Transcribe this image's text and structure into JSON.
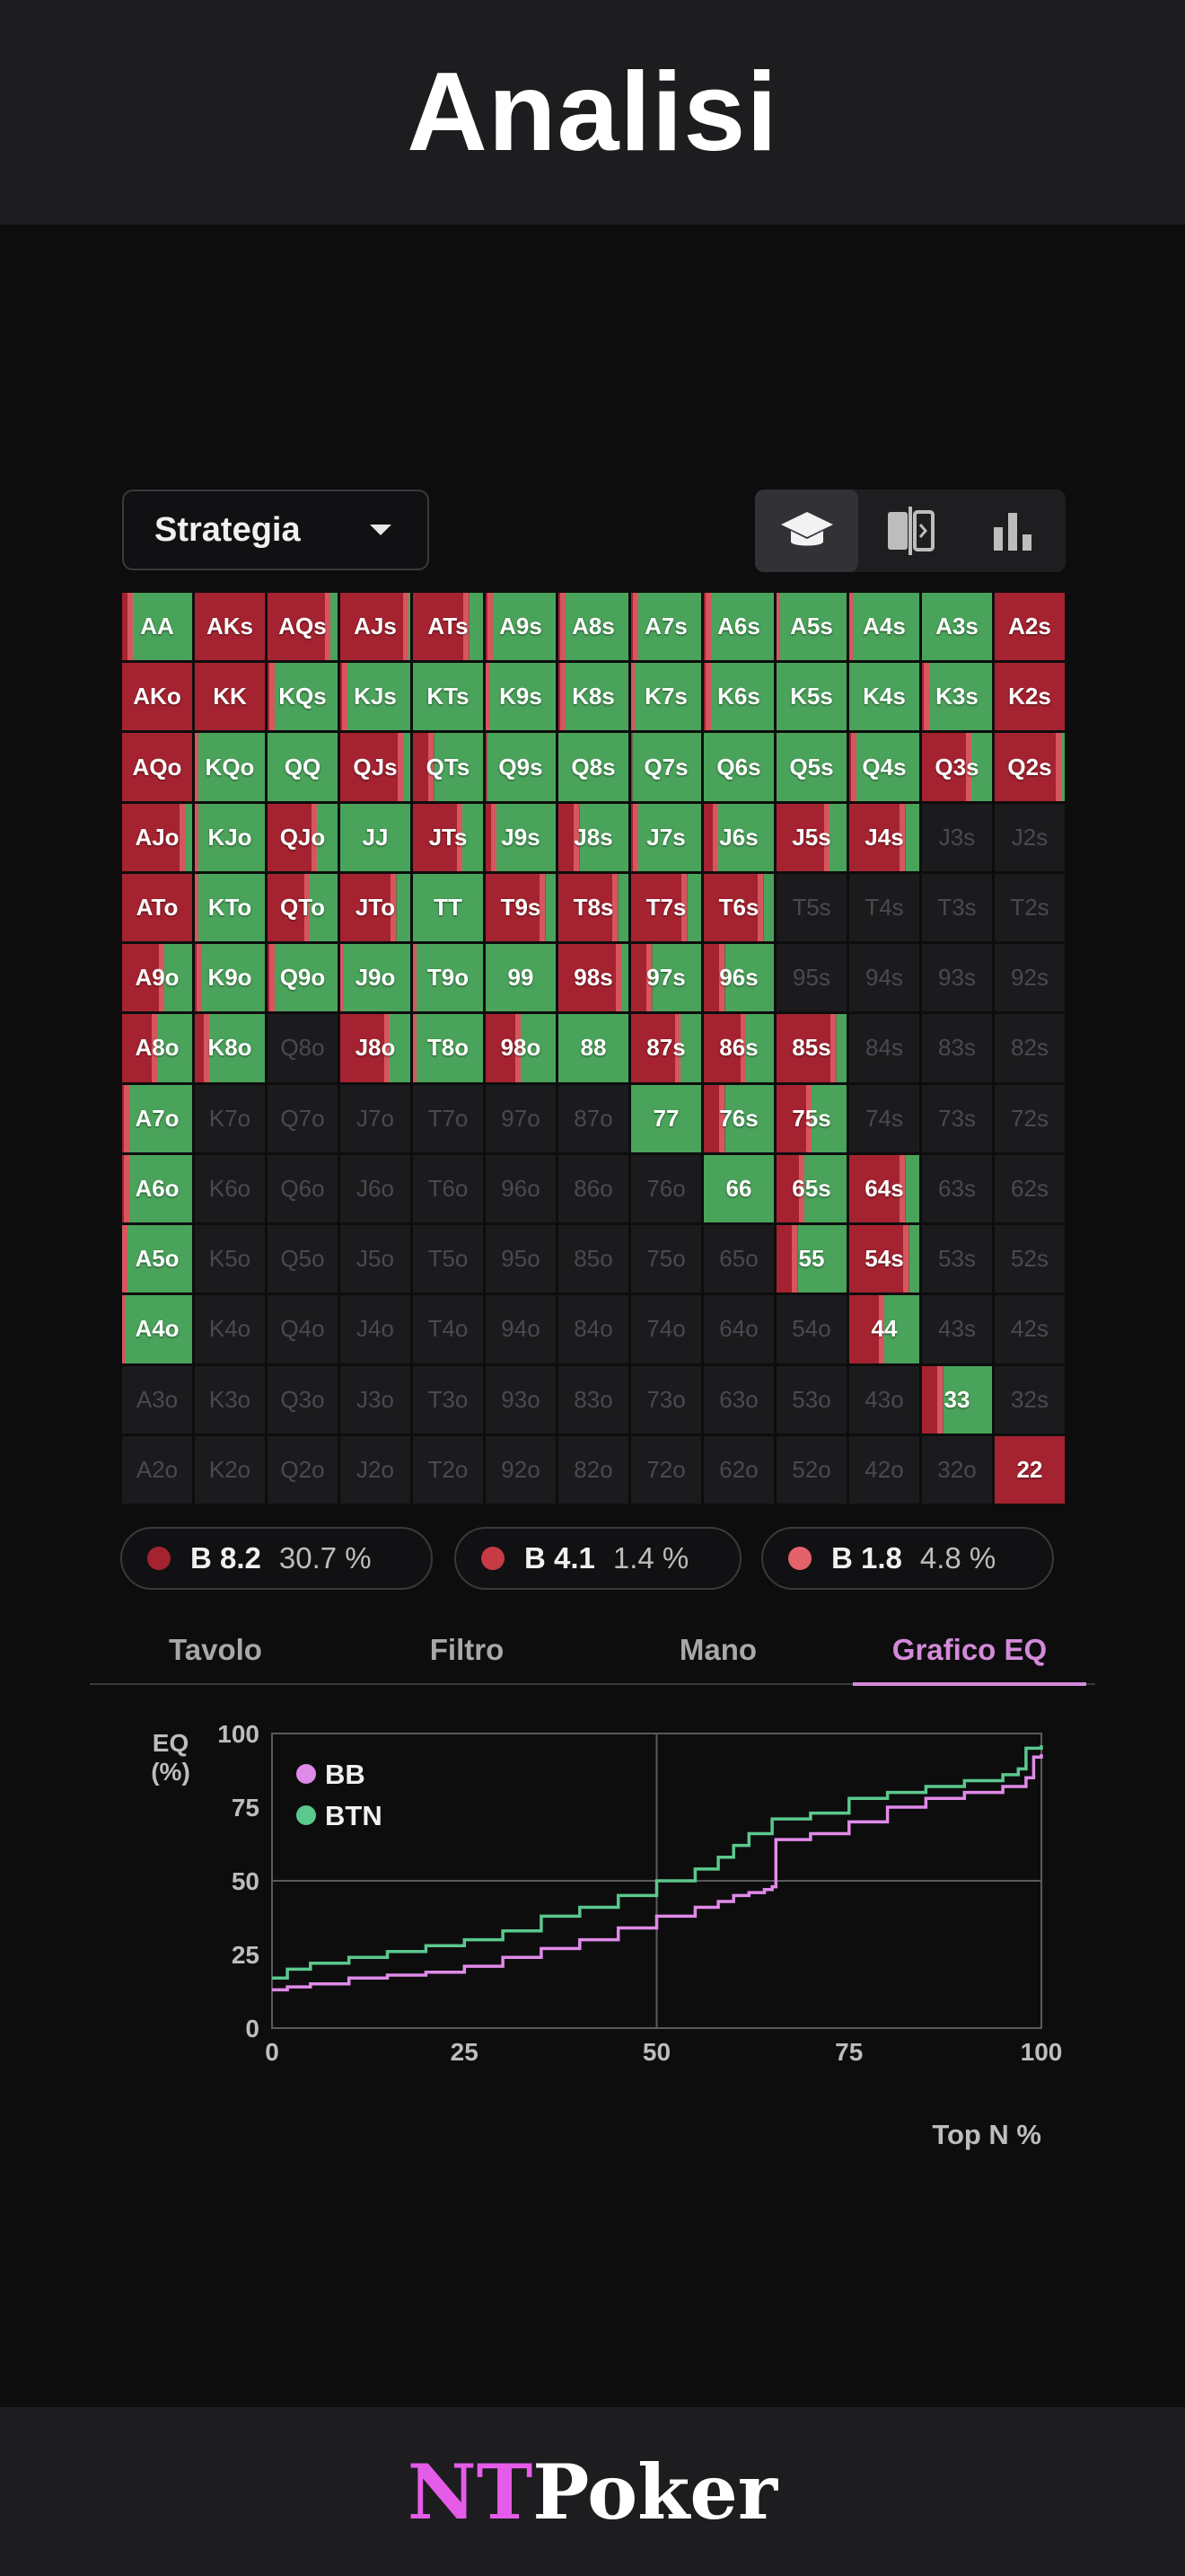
{
  "header": {
    "title": "Analisi"
  },
  "toolbar": {
    "strategy_select": "Strategia",
    "modes": [
      {
        "icon": "graduation-cap-icon",
        "active": true
      },
      {
        "icon": "compare-split-icon",
        "active": false
      },
      {
        "icon": "bar-chart-icon",
        "active": false
      }
    ]
  },
  "colors": {
    "red": "#a52330",
    "green": "#4aa35a",
    "light_red": "#e4626a",
    "empty": "#1b1b1d"
  },
  "hand_grid": {
    "rows": [
      [
        "AA",
        "AKs",
        "AQs",
        "AJs",
        "ATs",
        "A9s",
        "A8s",
        "A7s",
        "A6s",
        "A5s",
        "A4s",
        "A3s",
        "A2s"
      ],
      [
        "AKo",
        "KK",
        "KQs",
        "KJs",
        "KTs",
        "K9s",
        "K8s",
        "K7s",
        "K6s",
        "K5s",
        "K4s",
        "K3s",
        "K2s"
      ],
      [
        "AQo",
        "KQo",
        "QQ",
        "QJs",
        "QTs",
        "Q9s",
        "Q8s",
        "Q7s",
        "Q6s",
        "Q5s",
        "Q4s",
        "Q3s",
        "Q2s"
      ],
      [
        "AJo",
        "KJo",
        "QJo",
        "JJ",
        "JTs",
        "J9s",
        "J8s",
        "J7s",
        "J6s",
        "J5s",
        "J4s",
        "J3s",
        "J2s"
      ],
      [
        "ATo",
        "KTo",
        "QTo",
        "JTo",
        "TT",
        "T9s",
        "T8s",
        "T7s",
        "T6s",
        "T5s",
        "T4s",
        "T3s",
        "T2s"
      ],
      [
        "A9o",
        "K9o",
        "Q9o",
        "J9o",
        "T9o",
        "99",
        "98s",
        "97s",
        "96s",
        "95s",
        "94s",
        "93s",
        "92s"
      ],
      [
        "A8o",
        "K8o",
        "Q8o",
        "J8o",
        "T8o",
        "98o",
        "88",
        "87s",
        "86s",
        "85s",
        "84s",
        "83s",
        "82s"
      ],
      [
        "A7o",
        "K7o",
        "Q7o",
        "J7o",
        "T7o",
        "97o",
        "87o",
        "77",
        "76s",
        "75s",
        "74s",
        "73s",
        "72s"
      ],
      [
        "A6o",
        "K6o",
        "Q6o",
        "J6o",
        "T6o",
        "96o",
        "86o",
        "76o",
        "66",
        "65s",
        "64s",
        "63s",
        "62s"
      ],
      [
        "A5o",
        "K5o",
        "Q5o",
        "J5o",
        "T5o",
        "95o",
        "85o",
        "75o",
        "65o",
        "55",
        "54s",
        "53s",
        "52s"
      ],
      [
        "A4o",
        "K4o",
        "Q4o",
        "J4o",
        "T4o",
        "94o",
        "84o",
        "74o",
        "64o",
        "54o",
        "44",
        "43s",
        "42s"
      ],
      [
        "A3o",
        "K3o",
        "Q3o",
        "J3o",
        "T3o",
        "93o",
        "83o",
        "73o",
        "63o",
        "53o",
        "43o",
        "33",
        "32s"
      ],
      [
        "A2o",
        "K2o",
        "Q2o",
        "J2o",
        "T2o",
        "92o",
        "82o",
        "72o",
        "62o",
        "52o",
        "42o",
        "32o",
        "22"
      ]
    ],
    "cells": [
      [
        [
          0.15,
          0.85
        ],
        [
          1,
          0
        ],
        [
          0.9,
          0.1
        ],
        [
          0.97,
          0.03
        ],
        [
          0.8,
          0.2
        ],
        [
          0.1,
          0.9
        ],
        [
          0.1,
          0.9
        ],
        [
          0.1,
          0.9
        ],
        [
          0.1,
          0.9
        ],
        [
          0.05,
          0.95
        ],
        [
          0.05,
          0.95
        ],
        [
          0,
          1
        ],
        [
          1,
          0
        ]
      ],
      [
        [
          1,
          0
        ],
        [
          1,
          0
        ],
        [
          0.1,
          0.9
        ],
        [
          0.1,
          0.9
        ],
        [
          0,
          1
        ],
        [
          0.05,
          0.95
        ],
        [
          0.1,
          0.9
        ],
        [
          0.05,
          0.95
        ],
        [
          0.1,
          0.9
        ],
        [
          0,
          1
        ],
        [
          0,
          1
        ],
        [
          0.1,
          0.9
        ],
        [
          1,
          0
        ]
      ],
      [
        [
          1,
          0
        ],
        [
          0.05,
          0.95
        ],
        [
          0,
          1
        ],
        [
          0.9,
          0.1
        ],
        [
          0.3,
          0.7
        ],
        [
          0.02,
          0.98
        ],
        [
          0,
          1
        ],
        [
          0.02,
          0.98
        ],
        [
          0,
          1
        ],
        [
          0,
          1
        ],
        [
          0.1,
          0.9
        ],
        [
          0.7,
          0.3
        ],
        [
          0.95,
          0.05
        ]
      ],
      [
        [
          0.9,
          0.1
        ],
        [
          0.05,
          0.95
        ],
        [
          0.7,
          0.3
        ],
        [
          0,
          1
        ],
        [
          0.7,
          0.3
        ],
        [
          0.15,
          0.85
        ],
        [
          0.3,
          0.7
        ],
        [
          0.1,
          0.9
        ],
        [
          0.2,
          0.8
        ],
        [
          0.75,
          0.25
        ],
        [
          0.8,
          0.2
        ],
        null,
        null
      ],
      [
        [
          1,
          0
        ],
        [
          0.05,
          0.95
        ],
        [
          0.6,
          0.4
        ],
        [
          0.8,
          0.2
        ],
        [
          0,
          1
        ],
        [
          0.85,
          0.15
        ],
        [
          0.85,
          0.15
        ],
        [
          0.8,
          0.2
        ],
        [
          0.85,
          0.15
        ],
        null,
        null,
        null,
        null
      ],
      [
        [
          0.6,
          0.4
        ],
        [
          0.1,
          0.9
        ],
        [
          0.1,
          0.9
        ],
        [
          0.05,
          0.95
        ],
        [
          0.05,
          0.95
        ],
        [
          0,
          1
        ],
        [
          0.9,
          0.1
        ],
        [
          0.3,
          0.7
        ],
        [
          0.3,
          0.7
        ],
        null,
        null,
        null,
        null
      ],
      [
        [
          0.5,
          0.5
        ],
        [
          0.2,
          0.8
        ],
        null,
        [
          0.7,
          0.3
        ],
        [
          0.05,
          0.95
        ],
        [
          0.5,
          0.5
        ],
        [
          0,
          1
        ],
        [
          0.7,
          0.3
        ],
        [
          0.6,
          0.4
        ],
        [
          0.85,
          0.15
        ],
        null,
        null,
        null
      ],
      [
        [
          0.1,
          0.9
        ],
        null,
        null,
        null,
        null,
        null,
        null,
        [
          0,
          1
        ],
        [
          0.3,
          0.7
        ],
        [
          0.5,
          0.5
        ],
        null,
        null,
        null
      ],
      [
        [
          0.1,
          0.9
        ],
        null,
        null,
        null,
        null,
        null,
        null,
        null,
        [
          0,
          1
        ],
        [
          0.4,
          0.6
        ],
        [
          0.8,
          0.2
        ],
        null,
        null
      ],
      [
        [
          0.08,
          0.92
        ],
        null,
        null,
        null,
        null,
        null,
        null,
        null,
        null,
        [
          0.3,
          0.7
        ],
        [
          0.85,
          0.15
        ],
        null,
        null
      ],
      [
        [
          0.05,
          0.95
        ],
        null,
        null,
        null,
        null,
        null,
        null,
        null,
        null,
        null,
        [
          0.5,
          0.5
        ],
        null,
        null
      ],
      [
        null,
        null,
        null,
        null,
        null,
        null,
        null,
        null,
        null,
        null,
        null,
        [
          0.3,
          0.7
        ],
        null
      ],
      [
        null,
        null,
        null,
        null,
        null,
        null,
        null,
        null,
        null,
        null,
        null,
        null,
        [
          1,
          0
        ]
      ]
    ]
  },
  "legend_pills": [
    {
      "name": "B 8.2",
      "pct": "30.7 %",
      "color": "#a52330"
    },
    {
      "name": "B 4.1",
      "pct": "1.4 %",
      "color": "#c73b44"
    },
    {
      "name": "B 1.8",
      "pct": "4.8 %",
      "color": "#e4626a"
    }
  ],
  "tabs": [
    {
      "label": "Tavolo",
      "active": false
    },
    {
      "label": "Filtro",
      "active": false
    },
    {
      "label": "Mano",
      "active": false
    },
    {
      "label": "Grafico EQ",
      "active": true
    }
  ],
  "chart_data": {
    "type": "line",
    "ylabel": "EQ\n(%)",
    "xlabel": "Top N %",
    "xlim": [
      0,
      100
    ],
    "ylim": [
      0,
      100
    ],
    "xticks": [
      "0",
      "25",
      "50",
      "75",
      "100"
    ],
    "yticks": [
      "0",
      "25",
      "50",
      "75",
      "100"
    ],
    "grid": true,
    "legend_position": "top-left",
    "series": [
      {
        "name": "BB",
        "color": "#e08ae8",
        "x": [
          0,
          2,
          5,
          10,
          15,
          20,
          25,
          30,
          35,
          40,
          45,
          50,
          55,
          58,
          60,
          62,
          64,
          65,
          65.5,
          70,
          75,
          80,
          85,
          90,
          95,
          98,
          99,
          100
        ],
        "y": [
          13,
          14,
          15,
          17,
          18,
          19,
          21,
          24,
          27,
          30,
          34,
          38,
          41,
          43,
          45,
          46,
          47,
          48,
          64,
          66,
          70,
          75,
          78,
          80,
          82,
          85,
          92,
          93
        ]
      },
      {
        "name": "BTN",
        "color": "#5bc88d",
        "x": [
          0,
          2,
          5,
          10,
          15,
          20,
          25,
          30,
          35,
          40,
          45,
          50,
          55,
          58,
          60,
          62,
          65,
          70,
          75,
          80,
          85,
          90,
          95,
          97,
          98,
          100
        ],
        "y": [
          17,
          20,
          22,
          24,
          26,
          28,
          30,
          33,
          38,
          41,
          45,
          50,
          54,
          58,
          62,
          66,
          71,
          73,
          78,
          80,
          82,
          84,
          86,
          88,
          95,
          96
        ]
      }
    ]
  },
  "footer": {
    "brand_a": "NT",
    "brand_b": "Poker"
  }
}
